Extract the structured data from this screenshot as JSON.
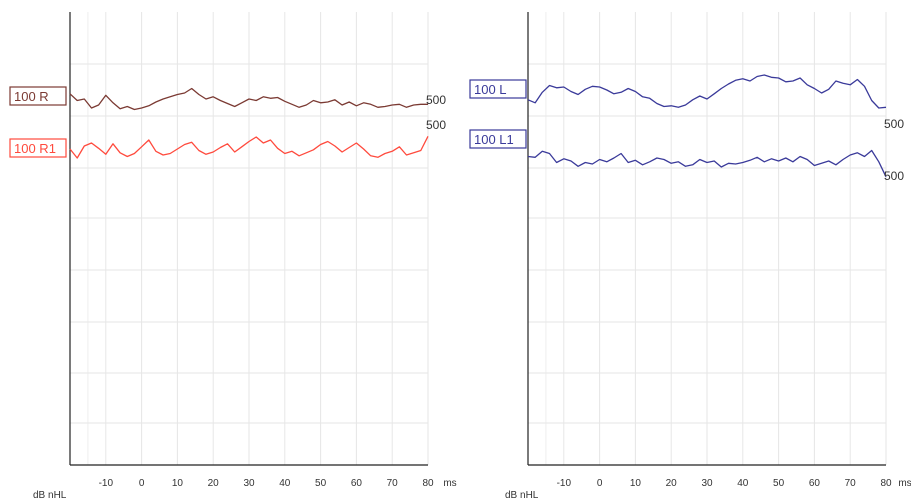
{
  "axis": {
    "x_unit": "ms",
    "y_unit": "dB nHL",
    "xlim": [
      -20,
      80
    ],
    "x_ticks": [
      -10,
      0,
      10,
      20,
      30,
      40,
      50,
      60,
      70,
      80
    ],
    "grid": true
  },
  "chart_data": [
    {
      "type": "line",
      "panel": "right-ear",
      "xlim": [
        -20,
        80
      ],
      "series": [
        {
          "name": "100 R",
          "level_label": "500",
          "color": "#7b3a33",
          "x": [
            -20,
            -18,
            -16,
            -14,
            -12,
            -10,
            -8,
            -6,
            -4,
            -2,
            0,
            2,
            4,
            6,
            8,
            10,
            12,
            14,
            16,
            18,
            20,
            22,
            24,
            26,
            28,
            30,
            32,
            34,
            36,
            38,
            40,
            42,
            44,
            46,
            48,
            50,
            52,
            54,
            56,
            58,
            60,
            62,
            64,
            66,
            68,
            70,
            72,
            74,
            76,
            78,
            80
          ],
          "y": [
            0.3,
            -0.6,
            -0.4,
            -1.6,
            -1.2,
            0.1,
            -0.9,
            -1.7,
            -1.4,
            -1.8,
            -1.6,
            -1.3,
            -0.8,
            -0.4,
            -0.1,
            0.2,
            0.4,
            1.0,
            0.2,
            -0.4,
            -0.1,
            -0.6,
            -1.0,
            -1.4,
            -0.9,
            -0.4,
            -0.6,
            -0.1,
            -0.3,
            -0.2,
            -0.7,
            -1.1,
            -1.5,
            -1.2,
            -0.6,
            -0.9,
            -0.8,
            -0.5,
            -1.2,
            -0.8,
            -1.3,
            -0.9,
            -1.1,
            -1.5,
            -1.4,
            -1.2,
            -1.1,
            -1.5,
            -1.2,
            -1.1,
            -1.1
          ]
        },
        {
          "name": "100 R1",
          "level_label": "500",
          "color": "#ff4a3d",
          "x": [
            -20,
            -18,
            -16,
            -14,
            -12,
            -10,
            -8,
            -6,
            -4,
            -2,
            0,
            2,
            4,
            6,
            8,
            10,
            12,
            14,
            16,
            18,
            20,
            22,
            24,
            26,
            28,
            30,
            32,
            34,
            36,
            38,
            40,
            42,
            44,
            46,
            48,
            50,
            52,
            54,
            56,
            58,
            60,
            62,
            64,
            66,
            68,
            70,
            72,
            74,
            76,
            78,
            80
          ],
          "y": [
            -3.6,
            -4.8,
            -3.2,
            -2.8,
            -3.5,
            -4.3,
            -2.9,
            -4.1,
            -4.6,
            -4.2,
            -3.3,
            -2.4,
            -3.9,
            -4.4,
            -4.2,
            -3.6,
            -3.0,
            -2.7,
            -3.8,
            -4.3,
            -4.0,
            -3.4,
            -2.9,
            -4.0,
            -3.3,
            -2.6,
            -2.0,
            -2.8,
            -2.4,
            -3.5,
            -4.2,
            -3.9,
            -4.5,
            -4.1,
            -3.7,
            -3.0,
            -2.6,
            -3.2,
            -4.0,
            -3.4,
            -2.8,
            -3.6,
            -4.5,
            -4.7,
            -4.2,
            -3.9,
            -3.3,
            -4.4,
            -4.1,
            -3.8,
            -1.9
          ]
        }
      ]
    },
    {
      "type": "line",
      "panel": "left-ear",
      "xlim": [
        -20,
        80
      ],
      "series": [
        {
          "name": "100 L",
          "level_label": "500",
          "color": "#3a3a9a",
          "x": [
            -20,
            -18,
            -16,
            -14,
            -12,
            -10,
            -8,
            -6,
            -4,
            -2,
            0,
            2,
            4,
            6,
            8,
            10,
            12,
            14,
            16,
            18,
            20,
            22,
            24,
            26,
            28,
            30,
            32,
            34,
            36,
            38,
            40,
            42,
            44,
            46,
            48,
            50,
            52,
            54,
            56,
            58,
            60,
            62,
            64,
            66,
            68,
            70,
            72,
            74,
            76,
            78,
            80
          ],
          "y": [
            -1.3,
            -1.7,
            -0.3,
            0.6,
            0.3,
            0.4,
            -0.2,
            -0.6,
            0.1,
            0.5,
            0.4,
            0.0,
            -0.5,
            -0.3,
            0.2,
            -0.2,
            -0.9,
            -1.1,
            -1.8,
            -2.2,
            -2.1,
            -2.3,
            -2.0,
            -1.3,
            -0.8,
            -1.2,
            -0.5,
            0.2,
            0.8,
            1.3,
            1.5,
            1.2,
            1.8,
            2.0,
            1.7,
            1.6,
            1.1,
            1.2,
            1.6,
            0.7,
            0.2,
            -0.4,
            0.1,
            1.2,
            0.9,
            0.7,
            1.4,
            0.5,
            -1.4,
            -2.4,
            -2.3
          ]
        },
        {
          "name": "100 L1",
          "level_label": "500",
          "color": "#3a3a9a",
          "x": [
            -20,
            -18,
            -16,
            -14,
            -12,
            -10,
            -8,
            -6,
            -4,
            -2,
            0,
            2,
            4,
            6,
            8,
            10,
            12,
            14,
            16,
            18,
            20,
            22,
            24,
            26,
            28,
            30,
            32,
            34,
            36,
            38,
            40,
            42,
            44,
            46,
            48,
            50,
            52,
            54,
            56,
            58,
            60,
            62,
            64,
            66,
            68,
            70,
            72,
            74,
            76,
            78,
            80
          ],
          "y": [
            -2.2,
            -2.3,
            -1.5,
            -1.8,
            -3.0,
            -2.5,
            -2.8,
            -3.5,
            -3.0,
            -3.2,
            -2.6,
            -2.9,
            -2.4,
            -1.8,
            -3.0,
            -2.7,
            -3.3,
            -2.9,
            -2.4,
            -2.6,
            -3.1,
            -2.9,
            -3.5,
            -3.3,
            -2.6,
            -3.0,
            -2.8,
            -3.6,
            -3.1,
            -3.2,
            -3.0,
            -2.7,
            -2.3,
            -2.9,
            -2.5,
            -2.8,
            -2.4,
            -2.9,
            -2.2,
            -2.6,
            -3.4,
            -3.1,
            -2.8,
            -3.3,
            -2.6,
            -2.0,
            -1.7,
            -2.2,
            -1.4,
            -2.9,
            -4.9
          ]
        }
      ]
    }
  ]
}
